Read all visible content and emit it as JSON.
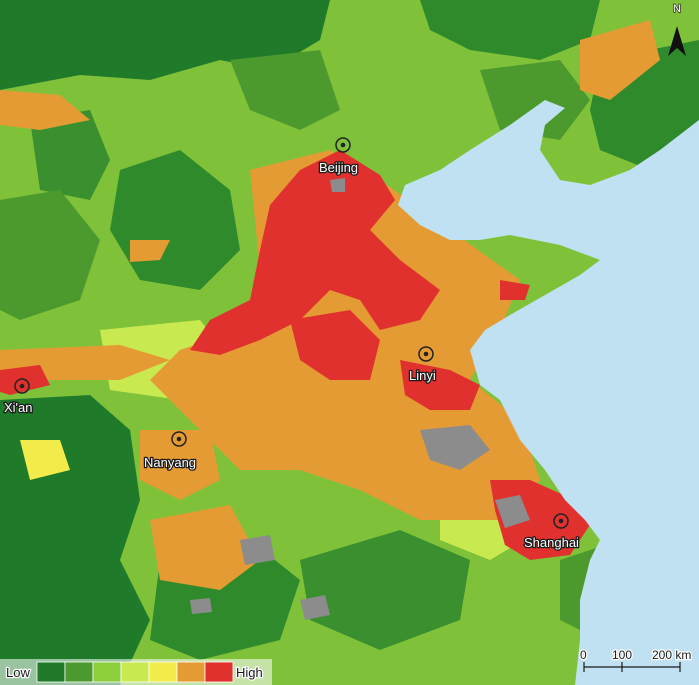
{
  "colors": {
    "sea": "#bfe1f1",
    "urban": "#8c8c8c",
    "level1": "#1f7a2a",
    "level2": "#4c9a2e",
    "level3": "#8ccf3a",
    "level4": "#c8ea50",
    "level5": "#f2ec4a",
    "level6": "#e59b34",
    "level7": "#e0312e"
  },
  "cities": [
    {
      "id": "beijing",
      "name": "Beijing"
    },
    {
      "id": "linyi",
      "name": "Linyi"
    },
    {
      "id": "xian",
      "name": "Xi'an"
    },
    {
      "id": "nanyang",
      "name": "Nanyang"
    },
    {
      "id": "shanghai",
      "name": "Shanghai"
    }
  ],
  "legend": {
    "low_label": "Low",
    "high_label": "High",
    "swatches": [
      "#1f7a2a",
      "#4c9a2e",
      "#8ccf3a",
      "#c8ea50",
      "#f2ec4a",
      "#e59b34",
      "#e0312e"
    ]
  },
  "scale_bar": {
    "ticks": [
      "0",
      "100",
      "200 km"
    ]
  },
  "north_arrow": {
    "label": "N",
    "icon": "north-arrow-icon"
  }
}
